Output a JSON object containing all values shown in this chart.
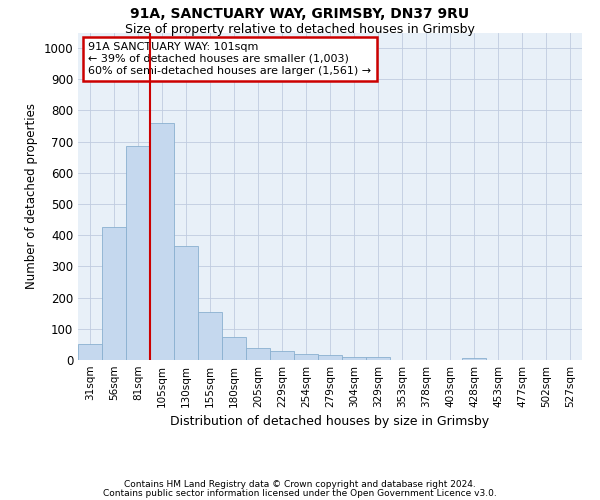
{
  "title1": "91A, SANCTUARY WAY, GRIMSBY, DN37 9RU",
  "title2": "Size of property relative to detached houses in Grimsby",
  "xlabel": "Distribution of detached houses by size in Grimsby",
  "ylabel": "Number of detached properties",
  "bins": [
    "31sqm",
    "56sqm",
    "81sqm",
    "105sqm",
    "130sqm",
    "155sqm",
    "180sqm",
    "205sqm",
    "229sqm",
    "254sqm",
    "279sqm",
    "304sqm",
    "329sqm",
    "353sqm",
    "378sqm",
    "403sqm",
    "428sqm",
    "453sqm",
    "477sqm",
    "502sqm",
    "527sqm"
  ],
  "values": [
    52,
    425,
    685,
    760,
    365,
    155,
    75,
    40,
    30,
    18,
    15,
    10,
    10,
    0,
    0,
    0,
    8,
    0,
    0,
    0,
    0
  ],
  "bar_color": "#c5d8ee",
  "bar_edge_color": "#8ab0d0",
  "vline_color": "#cc0000",
  "ylim": [
    0,
    1000
  ],
  "yticks": [
    0,
    100,
    200,
    300,
    400,
    500,
    600,
    700,
    800,
    900,
    1000
  ],
  "annotation_line1": "91A SANCTUARY WAY: 101sqm",
  "annotation_line2": "← 39% of detached houses are smaller (1,003)",
  "annotation_line3": "60% of semi-detached houses are larger (1,561) →",
  "annotation_box_color": "#ffffff",
  "annotation_box_edge": "#cc0000",
  "footer1": "Contains HM Land Registry data © Crown copyright and database right 2024.",
  "footer2": "Contains public sector information licensed under the Open Government Licence v3.0.",
  "plot_bg_color": "#e8f0f8"
}
